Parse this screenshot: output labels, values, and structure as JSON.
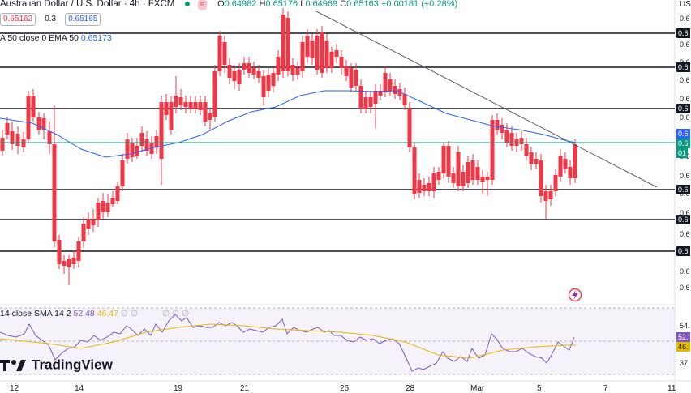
{
  "header": {
    "symbol_title": "Australian Dollar / U.S. Dollar · 4h · FXCM",
    "wave_badge": "≈",
    "ohlc": {
      "o_label": "O",
      "o": "0.64982",
      "h_label": "H",
      "h": "0.65176",
      "l_label": "L",
      "l": "0.64969",
      "c_label": "C",
      "c": "0.65163",
      "change": "+0.00181 (+0.28%)"
    }
  },
  "bidask": {
    "sell": "0.65162",
    "spread": "0.3",
    "buy": "0.65165"
  },
  "ema_legend": {
    "label": "A 50 close 0 EMA 50",
    "value": "0.65173"
  },
  "rsi_legend": {
    "label": "14 close SMA 14 2",
    "rsi": "52.48",
    "sma": "46.47",
    "zeros": "∅ ∅",
    "zeros2": "∅ ∅ ∅"
  },
  "price_axis": {
    "currency": "USD",
    "labels": [
      "0.6",
      "0.6",
      "0.6",
      "0.6",
      "0.6",
      "0.6",
      "0.6",
      "0.6",
      "0.6",
      "0.6",
      "0.6",
      "0.6",
      "0.6",
      "0.6"
    ],
    "tagged": [
      "0.6",
      "0.6",
      "0.6",
      "0.6",
      "0.6",
      "0.6"
    ],
    "ema_tag": "0.6",
    "price_tag": "0.6",
    "price_tag2": "01",
    "rsi_labels": [
      "54.",
      "52.",
      "46.",
      "37."
    ]
  },
  "time_axis": [
    "12",
    "14",
    "19",
    "21",
    "26",
    "28",
    "Mar",
    "5",
    "7",
    "11"
  ],
  "brand": {
    "name": "TradingView"
  },
  "colors": {
    "up": "#089981",
    "down": "#f23645",
    "ema": "#2962ff",
    "rsi": "#7e57c2",
    "rsi_sma": "#e6b800",
    "hline": "#131722",
    "trend": "#5d606b",
    "price_line": "#089981"
  }
}
